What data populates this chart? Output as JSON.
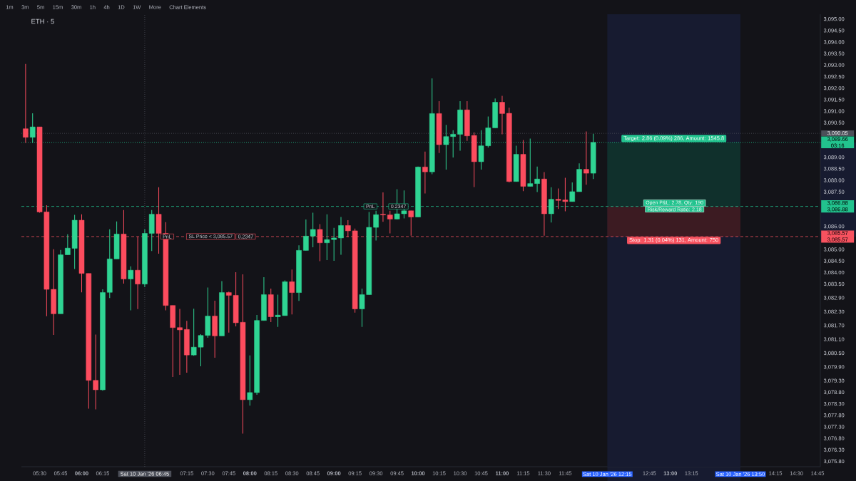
{
  "chart_data": {
    "type": "candlestick",
    "title": "ETH · 5",
    "x": [
      "2026-01-10T05:20",
      "2026-01-10T05:25",
      "2026-01-10T05:30",
      "2026-01-10T05:35",
      "2026-01-10T05:40",
      "2026-01-10T05:45",
      "2026-01-10T05:50",
      "2026-01-10T05:55",
      "2026-01-10T06:00",
      "2026-01-10T06:05",
      "2026-01-10T06:10",
      "2026-01-10T06:15",
      "2026-01-10T06:20",
      "2026-01-10T06:25",
      "2026-01-10T06:30",
      "2026-01-10T06:35",
      "2026-01-10T06:40",
      "2026-01-10T06:45",
      "2026-01-10T06:50",
      "2026-01-10T06:55",
      "2026-01-10T07:00",
      "2026-01-10T07:05",
      "2026-01-10T07:10",
      "2026-01-10T07:15",
      "2026-01-10T07:20",
      "2026-01-10T07:25",
      "2026-01-10T07:30",
      "2026-01-10T07:35",
      "2026-01-10T07:40",
      "2026-01-10T07:45",
      "2026-01-10T07:50",
      "2026-01-10T07:55",
      "2026-01-10T08:00",
      "2026-01-10T08:05",
      "2026-01-10T08:10",
      "2026-01-10T08:15",
      "2026-01-10T08:20",
      "2026-01-10T08:25",
      "2026-01-10T08:30",
      "2026-01-10T08:35",
      "2026-01-10T08:40",
      "2026-01-10T08:45",
      "2026-01-10T08:50",
      "2026-01-10T08:55",
      "2026-01-10T09:00",
      "2026-01-10T09:05",
      "2026-01-10T09:10",
      "2026-01-10T09:15",
      "2026-01-10T09:20",
      "2026-01-10T09:25",
      "2026-01-10T09:30",
      "2026-01-10T09:35",
      "2026-01-10T09:40",
      "2026-01-10T09:45",
      "2026-01-10T09:50",
      "2026-01-10T09:55",
      "2026-01-10T10:00",
      "2026-01-10T10:05",
      "2026-01-10T10:10",
      "2026-01-10T10:15",
      "2026-01-10T10:20",
      "2026-01-10T10:25",
      "2026-01-10T10:30",
      "2026-01-10T10:35",
      "2026-01-10T10:40",
      "2026-01-10T10:45",
      "2026-01-10T10:50",
      "2026-01-10T10:55",
      "2026-01-10T11:00",
      "2026-01-10T11:05",
      "2026-01-10T11:10",
      "2026-01-10T11:15",
      "2026-01-10T11:20",
      "2026-01-10T11:25",
      "2026-01-10T11:30",
      "2026-01-10T11:35",
      "2026-01-10T11:40",
      "2026-01-10T11:45",
      "2026-01-10T11:50",
      "2026-01-10T11:55",
      "2026-01-10T12:00",
      "2026-01-10T12:05"
    ],
    "ohlc": [
      [
        3090.25,
        3093.06,
        3089.64,
        3089.88
      ],
      [
        3089.88,
        3090.92,
        3089.64,
        3090.33
      ],
      [
        3090.33,
        3090.33,
        3086.61,
        3086.64
      ],
      [
        3086.64,
        3086.93,
        3082.11,
        3083.28
      ],
      [
        3083.28,
        3085.02,
        3081.3,
        3082.22
      ],
      [
        3082.22,
        3084.99,
        3082.22,
        3084.78
      ],
      [
        3084.78,
        3085.67,
        3084.78,
        3085.07
      ],
      [
        3085.06,
        3086.51,
        3084.16,
        3086.28
      ],
      [
        3086.28,
        3086.54,
        3083.15,
        3083.97
      ],
      [
        3083.97,
        3083.97,
        3078.1,
        3079.33
      ],
      [
        3079.33,
        3081.32,
        3078.07,
        3078.92
      ],
      [
        3078.92,
        3083.28,
        3078.88,
        3083.14
      ],
      [
        3083.15,
        3085.89,
        3082.9,
        3084.6
      ],
      [
        3084.6,
        3086.23,
        3084.6,
        3085.68
      ],
      [
        3085.68,
        3086.72,
        3083.53,
        3083.73
      ],
      [
        3083.73,
        3084.28,
        3082.37,
        3084.11
      ],
      [
        3084.11,
        3085.56,
        3082.42,
        3083.51
      ],
      [
        3083.51,
        3085.89,
        3083.38,
        3085.71
      ],
      [
        3085.71,
        3086.72,
        3084.94,
        3086.54
      ],
      [
        3086.54,
        3087.71,
        3084.83,
        3085.71
      ],
      [
        3085.71,
        3086.2,
        3082.37,
        3082.58
      ],
      [
        3082.58,
        3082.58,
        3079.48,
        3081.62
      ],
      [
        3081.62,
        3082.43,
        3079.57,
        3081.52
      ],
      [
        3081.54,
        3081.91,
        3079.66,
        3080.43
      ],
      [
        3080.43,
        3082.44,
        3080.4,
        3080.77
      ],
      [
        3080.77,
        3081.33,
        3079.94,
        3081.28
      ],
      [
        3081.28,
        3083.36,
        3081.18,
        3082.12
      ],
      [
        3082.12,
        3082.79,
        3080.31,
        3081.26
      ],
      [
        3081.26,
        3083.64,
        3081.26,
        3083.14
      ],
      [
        3083.14,
        3083.18,
        3081.4,
        3083.02
      ],
      [
        3083.02,
        3084.02,
        3081.67,
        3081.83
      ],
      [
        3081.85,
        3083.93,
        3077.02,
        3078.49
      ],
      [
        3078.49,
        3080.41,
        3078.23,
        3078.8
      ],
      [
        3078.8,
        3082.17,
        3078.7,
        3081.93
      ],
      [
        3081.93,
        3083.81,
        3081.93,
        3083.05
      ],
      [
        3083.05,
        3083.31,
        3081.86,
        3082.09
      ],
      [
        3082.09,
        3083.05,
        3081.65,
        3082.16
      ],
      [
        3082.14,
        3083.67,
        3082.14,
        3083.61
      ],
      [
        3083.61,
        3084.14,
        3082.19,
        3083.14
      ],
      [
        3083.14,
        3085.19,
        3082.78,
        3084.97
      ],
      [
        3084.97,
        3086.31,
        3084.97,
        3085.59
      ],
      [
        3085.59,
        3086.61,
        3085.11,
        3085.88
      ],
      [
        3085.88,
        3086.11,
        3084.5,
        3085.3
      ],
      [
        3085.3,
        3086.54,
        3084.55,
        3085.44
      ],
      [
        3085.44,
        3085.95,
        3084.52,
        3085.51
      ],
      [
        3085.51,
        3086.42,
        3084.78,
        3086.05
      ],
      [
        3086.05,
        3086.28,
        3085.54,
        3085.82
      ],
      [
        3085.82,
        3085.92,
        3082.27,
        3082.43
      ],
      [
        3082.43,
        3083.31,
        3081.65,
        3083.05
      ],
      [
        3083.05,
        3086.64,
        3083.05,
        3085.97
      ],
      [
        3085.97,
        3086.69,
        3085.4,
        3086.52
      ],
      [
        3086.54,
        3087.49,
        3086.21,
        3086.51
      ],
      [
        3086.51,
        3086.69,
        3085.71,
        3086.33
      ],
      [
        3086.33,
        3087.63,
        3086.31,
        3086.56
      ],
      [
        3086.56,
        3087.57,
        3086.36,
        3086.69
      ],
      [
        3086.69,
        3086.69,
        3085.61,
        3086.42
      ],
      [
        3086.42,
        3088.61,
        3086.42,
        3088.59
      ],
      [
        3088.59,
        3089.26,
        3087.44,
        3088.38
      ],
      [
        3088.38,
        3092.44,
        3088.28,
        3090.91
      ],
      [
        3090.91,
        3091.45,
        3089.2,
        3089.56
      ],
      [
        3089.56,
        3090.42,
        3088.48,
        3089.91
      ],
      [
        3089.91,
        3090.19,
        3089.0,
        3090.01
      ],
      [
        3090.01,
        3091.45,
        3089.3,
        3091.07
      ],
      [
        3091.07,
        3091.45,
        3089.72,
        3089.94
      ],
      [
        3089.96,
        3090.09,
        3087.72,
        3088.82
      ],
      [
        3088.82,
        3090.19,
        3088.48,
        3089.51
      ],
      [
        3089.51,
        3090.78,
        3089.44,
        3090.29
      ],
      [
        3090.29,
        3091.56,
        3090.29,
        3091.4
      ],
      [
        3091.4,
        3091.68,
        3090.01,
        3090.91
      ],
      [
        3090.92,
        3091.17,
        3087.92,
        3087.96
      ],
      [
        3087.96,
        3089.51,
        3087.96,
        3089.14
      ],
      [
        3089.14,
        3089.76,
        3087.54,
        3087.75
      ],
      [
        3087.75,
        3089.82,
        3087.75,
        3087.87
      ],
      [
        3087.87,
        3088.61,
        3087.5,
        3088.07
      ],
      [
        3088.07,
        3088.37,
        3085.61,
        3086.56
      ],
      [
        3086.56,
        3087.71,
        3086.18,
        3087.19
      ],
      [
        3087.19,
        3087.66,
        3086.77,
        3087.14
      ],
      [
        3087.16,
        3088.12,
        3086.67,
        3087.09
      ],
      [
        3087.09,
        3087.92,
        3087.09,
        3087.52
      ],
      [
        3087.52,
        3088.75,
        3087.52,
        3088.49
      ],
      [
        3088.49,
        3090.13,
        3087.82,
        3088.32
      ],
      [
        3088.32,
        3090.03,
        3088.07,
        3089.66
      ]
    ],
    "colors": [
      "#fc4c5e",
      "#2fd493",
      "#fc4c5e",
      "#fc4c5e",
      "#fc4c5e",
      "#2fd493",
      "#2fd493",
      "#2fd493",
      "#fc4c5e",
      "#fc4c5e",
      "#fc4c5e",
      "#2fd493",
      "#2fd493",
      "#2fd493",
      "#fc4c5e",
      "#2fd493",
      "#fc4c5e",
      "#2fd493",
      "#2fd493",
      "#fc4c5e",
      "#fc4c5e",
      "#fc4c5e",
      "#fc4c5e",
      "#fc4c5e",
      "#2fd493",
      "#2fd493",
      "#2fd493",
      "#fc4c5e",
      "#2fd493",
      "#fc4c5e",
      "#fc4c5e",
      "#fc4c5e",
      "#2fd493",
      "#2fd493",
      "#2fd493",
      "#fc4c5e",
      "#2fd493",
      "#2fd493",
      "#fc4c5e",
      "#2fd493",
      "#2fd493",
      "#2fd493",
      "#fc4c5e",
      "#2fd493",
      "#2fd493",
      "#2fd493",
      "#fc4c5e",
      "#fc4c5e",
      "#2fd493",
      "#2fd493",
      "#2fd493",
      "#fc4c5e",
      "#fc4c5e",
      "#2fd493",
      "#2fd493",
      "#fc4c5e",
      "#2fd493",
      "#fc4c5e",
      "#2fd493",
      "#fc4c5e",
      "#2fd493",
      "#2fd493",
      "#2fd493",
      "#fc4c5e",
      "#fc4c5e",
      "#2fd493",
      "#2fd493",
      "#2fd493",
      "#fc4c5e",
      "#fc4c5e",
      "#2fd493",
      "#fc4c5e",
      "#2fd493",
      "#2fd493",
      "#fc4c5e",
      "#2fd493",
      "#fc4c5e",
      "#fc4c5e",
      "#2fd493",
      "#2fd493",
      "#fc4c5e",
      "#2fd493"
    ],
    "xlim": [
      "2026-01-10T05:17",
      "2026-01-10T14:47"
    ],
    "ylim": [
      3075.58,
      3095.22
    ],
    "xticks": [
      {
        "value": "2026-01-10T05:30",
        "label": "05:30"
      },
      {
        "value": "2026-01-10T05:45",
        "label": "05:45"
      },
      {
        "value": "2026-01-10T06:00",
        "label": "06:00"
      },
      {
        "value": "2026-01-10T06:15",
        "label": "06:15"
      },
      {
        "value": "2026-01-10T07:15",
        "label": "07:15"
      },
      {
        "value": "2026-01-10T07:30",
        "label": "07:30"
      },
      {
        "value": "2026-01-10T07:45",
        "label": "07:45"
      },
      {
        "value": "2026-01-10T08:00",
        "label": "08:00"
      },
      {
        "value": "2026-01-10T08:15",
        "label": "08:15"
      },
      {
        "value": "2026-01-10T08:30",
        "label": "08:30"
      },
      {
        "value": "2026-01-10T08:45",
        "label": "08:45"
      },
      {
        "value": "2026-01-10T09:00",
        "label": "09:00"
      },
      {
        "value": "2026-01-10T09:15",
        "label": "09:15"
      },
      {
        "value": "2026-01-10T09:30",
        "label": "09:30"
      },
      {
        "value": "2026-01-10T09:45",
        "label": "09:45"
      },
      {
        "value": "2026-01-10T10:00",
        "label": "10:00"
      },
      {
        "value": "2026-01-10T10:15",
        "label": "10:15"
      },
      {
        "value": "2026-01-10T10:30",
        "label": "10:30"
      },
      {
        "value": "2026-01-10T10:45",
        "label": "10:45"
      },
      {
        "value": "2026-01-10T11:00",
        "label": "11:00"
      },
      {
        "value": "2026-01-10T11:15",
        "label": "11:15"
      },
      {
        "value": "2026-01-10T11:30",
        "label": "11:30"
      },
      {
        "value": "2026-01-10T11:45",
        "label": "11:45"
      },
      {
        "value": "2026-01-10T12:15",
        "label": "Sat 10 Jan '26 12:15"
      },
      {
        "value": "2026-01-10T12:45",
        "label": "12:45"
      },
      {
        "value": "2026-01-10T13:00",
        "label": "13:00"
      },
      {
        "value": "2026-01-10T13:15",
        "label": "13:15"
      },
      {
        "value": "2026-01-10T13:50",
        "label": "Sat 10 Jan '26 13:50"
      },
      {
        "value": "2026-01-10T14:15",
        "label": "14:15"
      },
      {
        "value": "2026-01-10T14:30",
        "label": "14:30"
      },
      {
        "value": "2026-01-10T14:45",
        "label": "14:45"
      }
    ],
    "yticks": [
      {
        "value": 3095.0,
        "label": "3,095.00"
      },
      {
        "value": 3094.5,
        "label": "3,094.50"
      },
      {
        "value": 3094.0,
        "label": "3,094.00"
      },
      {
        "value": 3093.5,
        "label": "3,093.50"
      },
      {
        "value": 3093.0,
        "label": "3,093.00"
      },
      {
        "value": 3092.5,
        "label": "3,092.50"
      },
      {
        "value": 3092.0,
        "label": "3,092.00"
      },
      {
        "value": 3091.5,
        "label": "3,091.50"
      },
      {
        "value": 3091.0,
        "label": "3,091.00"
      },
      {
        "value": 3090.5,
        "label": "3,090.50"
      },
      {
        "value": 3089.0,
        "label": "3,089.00"
      },
      {
        "value": 3088.5,
        "label": "3,088.50"
      },
      {
        "value": 3088.0,
        "label": "3,088.00"
      },
      {
        "value": 3087.5,
        "label": "3,087.50"
      },
      {
        "value": 3086.0,
        "label": "3,086.00"
      },
      {
        "value": 3085.0,
        "label": "3,085.00"
      },
      {
        "value": 3084.5,
        "label": "3,084.50"
      },
      {
        "value": 3084.0,
        "label": "3,084.00"
      },
      {
        "value": 3083.5,
        "label": "3,083.50"
      },
      {
        "value": 3082.9,
        "label": "3,082.90"
      },
      {
        "value": 3082.3,
        "label": "3,082.30"
      },
      {
        "value": 3081.7,
        "label": "3,081.70"
      },
      {
        "value": 3081.1,
        "label": "3,081.10"
      },
      {
        "value": 3080.5,
        "label": "3,080.50"
      },
      {
        "value": 3079.9,
        "label": "3,079.90"
      },
      {
        "value": 3079.3,
        "label": "3,079.30"
      },
      {
        "value": 3078.8,
        "label": "3,078.80"
      },
      {
        "value": 3078.3,
        "label": "3,078.30"
      },
      {
        "value": 3077.8,
        "label": "3,077.80"
      },
      {
        "value": 3077.3,
        "label": "3,077.30"
      },
      {
        "value": 3076.8,
        "label": "3,076.80"
      },
      {
        "value": 3076.3,
        "label": "3,076.30"
      },
      {
        "value": 3075.8,
        "label": "3,075.80"
      }
    ],
    "ref_lines": [
      {
        "axis": "x",
        "value": "2026-01-10T06:45",
        "label": "Sat 10 Jan '26 06:45",
        "color": "#4c4f59",
        "line_style": "dotted"
      },
      {
        "axis": "y",
        "value": 3090.05,
        "label": "3,090.05",
        "color": "#4c4f59",
        "line_style": "dotted"
      },
      {
        "axis": "y",
        "value": 3089.66,
        "label": "3,089.66 03:16",
        "color": "#22c38e",
        "line_style": "dotted"
      },
      {
        "axis": "y",
        "value": 3086.88,
        "label": "3,086.88 3,086.88",
        "color": "#22c38e",
        "line_style": "dashed"
      },
      {
        "axis": "y",
        "value": 3085.57,
        "label": "3,085.57 3,085.57",
        "color": "#f7525f",
        "line_style": "dashed"
      }
    ],
    "bands": [
      {
        "axis": "x",
        "from": "2026-01-10T12:15",
        "to": "2026-01-10T13:50",
        "color": "#171b30"
      },
      {
        "axis": "y",
        "from": 3086.88,
        "to": 3089.66,
        "label": "Target: 2.86 (0.09%) 286, Amount: 1545.8",
        "color": "#10302c"
      },
      {
        "axis": "y",
        "from": 3085.57,
        "to": 3086.88,
        "label": "Stop: 1.31 (0.04%) 131, Amount: 750",
        "color": "#3c1b22"
      }
    ],
    "annotations": [
      "1m",
      "3m",
      "5m",
      "15m",
      "30m",
      "1h",
      "4h",
      "1D",
      "1W",
      "More",
      "Chart Elements",
      {
        "text": "Open P&L: 2.78, Qty: 190",
        "x": "2026-01-10T13:03",
        "y": 3086.88
      },
      {
        "text": "Risk/Reward Ratio: 2.18",
        "x": "2026-01-10T13:03",
        "y": 3086.88
      },
      {
        "text": "PnL",
        "x": "2026-01-10T07:01",
        "y": 3085.57
      },
      {
        "text": "SL Price < 3,085.57",
        "x": "2026-01-10T07:32",
        "y": 3085.57
      },
      {
        "text": "0.2347",
        "x": "2026-01-10T07:57",
        "y": 3085.57
      },
      {
        "text": "PnL",
        "x": "2026-01-10T09:26",
        "y": 3086.88
      },
      {
        "text": "0.2347",
        "x": "2026-01-10T09:46",
        "y": 3086.88
      }
    ]
  }
}
